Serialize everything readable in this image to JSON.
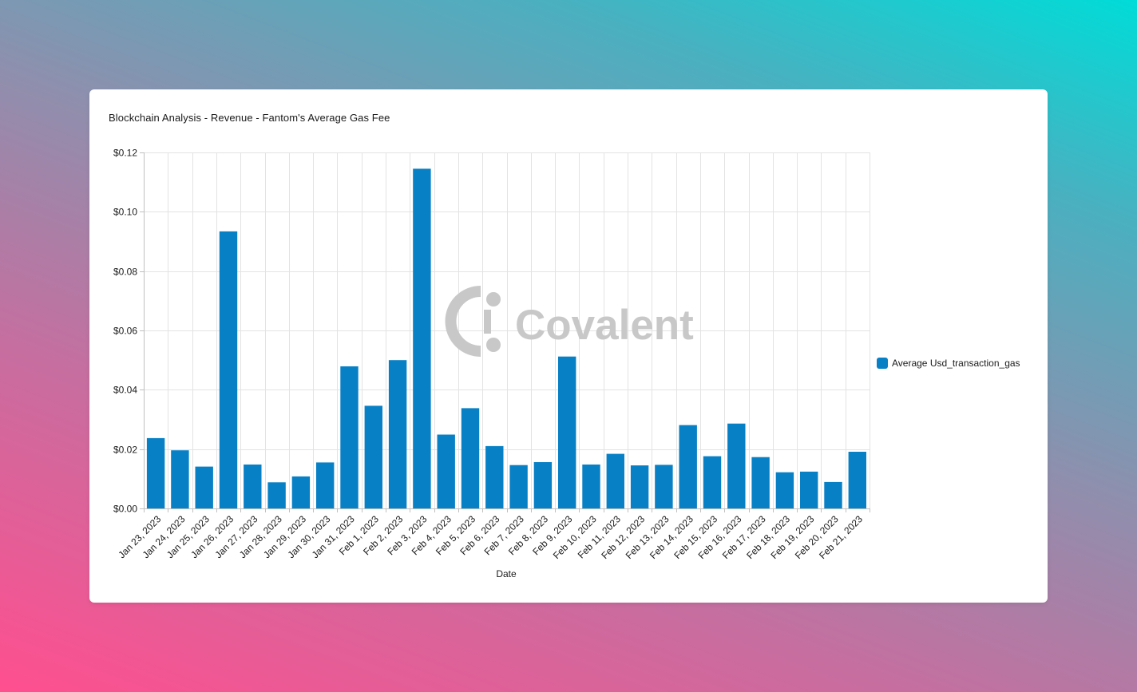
{
  "card": {
    "title": "Blockchain Analysis - Revenue - Fantom's Average Gas Fee"
  },
  "watermark": {
    "text": "Covalent"
  },
  "legend": {
    "label": "Average Usd_transaction_gas"
  },
  "colors": {
    "bar": "#0780c6",
    "grid": "#e3e3e3",
    "axis_text": "#1a1a1a",
    "watermark": "#c8c8c8"
  },
  "chart_data": {
    "type": "bar",
    "title": "Blockchain Analysis - Revenue - Fantom's Average Gas Fee",
    "xlabel": "Date",
    "ylabel": "",
    "ylim": [
      0,
      0.12
    ],
    "yticks": [
      0,
      0.02,
      0.04,
      0.06,
      0.08,
      0.1,
      0.12
    ],
    "ytick_labels": [
      "$0.00",
      "$0.02",
      "$0.04",
      "$0.06",
      "$0.08",
      "$0.10",
      "$0.12"
    ],
    "grid": true,
    "legend_position": "right",
    "categories": [
      "Jan 23, 2023",
      "Jan 24, 2023",
      "Jan 25, 2023",
      "Jan 26, 2023",
      "Jan 27, 2023",
      "Jan 28, 2023",
      "Jan 29, 2023",
      "Jan 30, 2023",
      "Jan 31, 2023",
      "Feb 1, 2023",
      "Feb 2, 2023",
      "Feb 3, 2023",
      "Feb 4, 2023",
      "Feb 5, 2023",
      "Feb 6, 2023",
      "Feb 7, 2023",
      "Feb 8, 2023",
      "Feb 9, 2023",
      "Feb 10, 2023",
      "Feb 11, 2023",
      "Feb 12, 2023",
      "Feb 13, 2023",
      "Feb 14, 2023",
      "Feb 15, 2023",
      "Feb 16, 2023",
      "Feb 17, 2023",
      "Feb 18, 2023",
      "Feb 19, 2023",
      "Feb 20, 2023",
      "Feb 21, 2023"
    ],
    "series": [
      {
        "name": "Average Usd_transaction_gas",
        "values": [
          0.0237,
          0.0196,
          0.0141,
          0.0934,
          0.0148,
          0.0088,
          0.0108,
          0.0155,
          0.0479,
          0.0346,
          0.05,
          0.1145,
          0.0249,
          0.0338,
          0.021,
          0.0146,
          0.0156,
          0.0512,
          0.0148,
          0.0184,
          0.0145,
          0.0147,
          0.0281,
          0.0176,
          0.0286,
          0.0173,
          0.0122,
          0.0124,
          0.0089,
          0.0191
        ]
      }
    ]
  }
}
